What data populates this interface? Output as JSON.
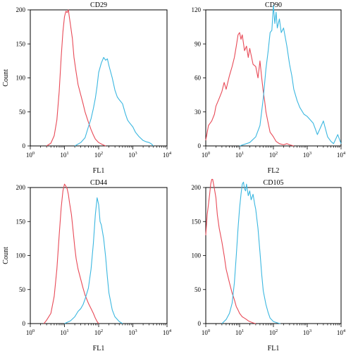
{
  "colors": {
    "isotype": "#e84a57",
    "marker": "#3bb7e0",
    "axis": "#000000"
  },
  "chart_data": [
    {
      "type": "line",
      "title": "CD29",
      "xlabel": "FL1",
      "ylabel": "Count",
      "x_scale": "log",
      "xlim": [
        1,
        10000
      ],
      "ylim": [
        0,
        200
      ],
      "x_ticks": [
        {
          "base": "10",
          "exp": "0"
        },
        {
          "base": "10",
          "exp": "1"
        },
        {
          "base": "10",
          "exp": "2"
        },
        {
          "base": "10",
          "exp": "3"
        },
        {
          "base": "10",
          "exp": "4"
        }
      ],
      "y_ticks": [
        "0",
        "50",
        "100",
        "150",
        "200"
      ],
      "y_tick_values": [
        0,
        50,
        100,
        150,
        200
      ],
      "series": [
        {
          "color": "#e84a57",
          "x": [
            3,
            4,
            5,
            6,
            7,
            8,
            9,
            10,
            11,
            12,
            13,
            14,
            15,
            17,
            19,
            22,
            25,
            30,
            35,
            40,
            50,
            60,
            70,
            80,
            100,
            130,
            160
          ],
          "y": [
            0,
            4,
            15,
            38,
            80,
            130,
            168,
            190,
            198,
            196,
            200,
            188,
            178,
            158,
            130,
            108,
            90,
            75,
            62,
            50,
            35,
            24,
            16,
            10,
            5,
            2,
            0
          ]
        },
        {
          "color": "#3bb7e0",
          "x": [
            20,
            30,
            40,
            50,
            60,
            70,
            80,
            90,
            100,
            120,
            140,
            160,
            180,
            200,
            250,
            300,
            350,
            400,
            500,
            600,
            700,
            800,
            1000,
            1200,
            1500,
            2000,
            2500,
            3000,
            3500,
            4000
          ],
          "y": [
            0,
            5,
            12,
            28,
            40,
            55,
            70,
            88,
            108,
            122,
            130,
            126,
            128,
            118,
            100,
            82,
            72,
            68,
            62,
            48,
            38,
            34,
            28,
            20,
            14,
            8,
            6,
            5,
            3,
            0
          ]
        }
      ]
    },
    {
      "type": "line",
      "title": "CD90",
      "xlabel": "FL2",
      "ylabel": "",
      "x_scale": "log",
      "xlim": [
        1,
        10000
      ],
      "ylim": [
        0,
        120
      ],
      "x_ticks": [
        {
          "base": "10",
          "exp": "0"
        },
        {
          "base": "10",
          "exp": "1"
        },
        {
          "base": "10",
          "exp": "2"
        },
        {
          "base": "10",
          "exp": "3"
        },
        {
          "base": "10",
          "exp": "4"
        }
      ],
      "y_ticks": [
        "0",
        "30",
        "60",
        "90",
        "120"
      ],
      "y_tick_values": [
        0,
        30,
        60,
        90,
        120
      ],
      "series": [
        {
          "color": "#e84a57",
          "x": [
            1,
            1.2,
            1.5,
            1.8,
            2,
            2.5,
            3,
            3.5,
            4,
            5,
            6,
            7,
            8,
            9,
            10,
            11,
            12,
            14,
            16,
            18,
            20,
            25,
            30,
            35,
            40,
            45,
            50,
            55,
            60,
            70,
            80,
            90,
            100,
            120,
            150,
            200,
            250,
            300,
            400
          ],
          "y": [
            5,
            18,
            22,
            28,
            35,
            42,
            48,
            56,
            50,
            62,
            70,
            78,
            88,
            98,
            100,
            94,
            98,
            84,
            88,
            78,
            86,
            72,
            70,
            60,
            75,
            60,
            48,
            40,
            30,
            20,
            12,
            10,
            8,
            4,
            2,
            1,
            2,
            1,
            0
          ]
        },
        {
          "color": "#3bb7e0",
          "x": [
            10,
            20,
            30,
            40,
            50,
            60,
            70,
            80,
            90,
            100,
            110,
            120,
            130,
            150,
            170,
            200,
            250,
            300,
            350,
            400,
            500,
            600,
            800,
            1000,
            1500,
            2000,
            3000,
            4000,
            5000,
            6000,
            8000,
            10000
          ],
          "y": [
            0,
            3,
            8,
            18,
            42,
            68,
            84,
            100,
            102,
            124,
            108,
            118,
            104,
            112,
            100,
            104,
            88,
            72,
            62,
            50,
            40,
            34,
            28,
            26,
            20,
            10,
            22,
            8,
            4,
            2,
            10,
            2
          ]
        }
      ]
    },
    {
      "type": "line",
      "title": "CD44",
      "xlabel": "FL1",
      "ylabel": "Count",
      "x_scale": "log",
      "xlim": [
        1,
        10000
      ],
      "ylim": [
        0,
        200
      ],
      "x_ticks": [
        {
          "base": "10",
          "exp": "0"
        },
        {
          "base": "10",
          "exp": "1"
        },
        {
          "base": "10",
          "exp": "2"
        },
        {
          "base": "10",
          "exp": "3"
        },
        {
          "base": "10",
          "exp": "4"
        }
      ],
      "y_ticks": [
        "0",
        "50",
        "100",
        "150",
        "200"
      ],
      "y_tick_values": [
        0,
        50,
        100,
        150,
        200
      ],
      "series": [
        {
          "color": "#e84a57",
          "x": [
            2.5,
            3,
            4,
            5,
            6,
            7,
            8,
            9,
            10,
            11,
            12,
            13,
            14,
            16,
            18,
            20,
            22,
            25,
            30,
            35,
            40,
            50,
            60,
            70,
            80,
            90,
            100
          ],
          "y": [
            0,
            5,
            15,
            40,
            80,
            130,
            170,
            195,
            205,
            202,
            198,
            190,
            178,
            160,
            135,
            112,
            95,
            80,
            65,
            52,
            42,
            30,
            22,
            15,
            8,
            3,
            0
          ]
        },
        {
          "color": "#3bb7e0",
          "x": [
            10,
            15,
            20,
            25,
            30,
            35,
            40,
            50,
            60,
            70,
            80,
            90,
            100,
            110,
            120,
            140,
            160,
            180,
            200,
            250,
            300,
            400,
            500
          ],
          "y": [
            0,
            4,
            10,
            18,
            22,
            28,
            36,
            52,
            80,
            118,
            160,
            185,
            175,
            150,
            145,
            125,
            98,
            68,
            45,
            20,
            10,
            3,
            0
          ]
        }
      ]
    },
    {
      "type": "line",
      "title": "CD105",
      "xlabel": "FL1",
      "ylabel": "",
      "x_scale": "log",
      "xlim": [
        1,
        10000
      ],
      "ylim": [
        0,
        200
      ],
      "x_ticks": [
        {
          "base": "10",
          "exp": "0"
        },
        {
          "base": "10",
          "exp": "1"
        },
        {
          "base": "10",
          "exp": "2"
        },
        {
          "base": "10",
          "exp": "3"
        },
        {
          "base": "10",
          "exp": "4"
        }
      ],
      "y_ticks": [
        "0",
        "50",
        "100",
        "150",
        "200"
      ],
      "y_tick_values": [
        0,
        50,
        100,
        150,
        200
      ],
      "series": [
        {
          "color": "#e84a57",
          "x": [
            1,
            1.1,
            1.2,
            1.3,
            1.4,
            1.5,
            1.6,
            1.8,
            2,
            2.2,
            2.5,
            3,
            3.5,
            4,
            5,
            6,
            7,
            8,
            9,
            10,
            12,
            14,
            16,
            18,
            20,
            25,
            30
          ],
          "y": [
            130,
            160,
            175,
            190,
            205,
            212,
            212,
            198,
            185,
            160,
            140,
            120,
            100,
            80,
            60,
            45,
            35,
            25,
            20,
            15,
            10,
            8,
            6,
            4,
            3,
            1,
            0
          ]
        },
        {
          "color": "#3bb7e0",
          "x": [
            3,
            4,
            5,
            6,
            7,
            8,
            9,
            10,
            11,
            12,
            13,
            14,
            15,
            16,
            18,
            20,
            22,
            25,
            28,
            30,
            35,
            40,
            45,
            50,
            60,
            70,
            80,
            100,
            130,
            160
          ],
          "y": [
            0,
            6,
            15,
            30,
            60,
            100,
            140,
            170,
            190,
            205,
            208,
            198,
            195,
            205,
            188,
            195,
            182,
            190,
            175,
            168,
            140,
            105,
            72,
            48,
            28,
            16,
            8,
            3,
            1,
            0
          ]
        }
      ]
    }
  ]
}
